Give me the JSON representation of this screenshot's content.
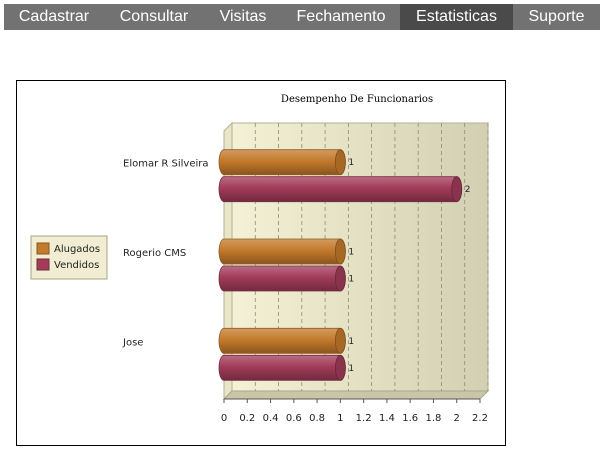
{
  "nav": {
    "tabs": [
      {
        "label": "Cadastrar"
      },
      {
        "label": "Consultar"
      },
      {
        "label": "Visitas"
      },
      {
        "label": "Fechamento"
      },
      {
        "label": "Estatisticas"
      },
      {
        "label": "Suporte"
      }
    ],
    "active_tab": "Estatisticas"
  },
  "colors": {
    "nav_bg": "#727272",
    "nav_active_bg": "#4a4a4a",
    "plot_bg_left": "#f5f1d6",
    "plot_bg_right": "#d2cfb2",
    "alugados": "#c47a2c",
    "vendidos": "#a23c5a"
  },
  "chart_data": {
    "type": "bar",
    "orientation": "horizontal",
    "title": "Desempenho De Funcionarios",
    "categories": [
      "Elomar R Silveira",
      "Rogerio CMS",
      "Jose"
    ],
    "series": [
      {
        "name": "Alugados",
        "values": [
          1,
          1,
          1
        ]
      },
      {
        "name": "Vendidos",
        "values": [
          2,
          1,
          1
        ]
      }
    ],
    "xlim": [
      0,
      2.2
    ],
    "ticks": [
      "0",
      "0.2",
      "0.4",
      "0.6",
      "0.8",
      "1",
      "1.2",
      "1.4",
      "1.6",
      "1.8",
      "2",
      "2.2"
    ],
    "grid": true,
    "legend_position": "left",
    "data_labels": true
  }
}
